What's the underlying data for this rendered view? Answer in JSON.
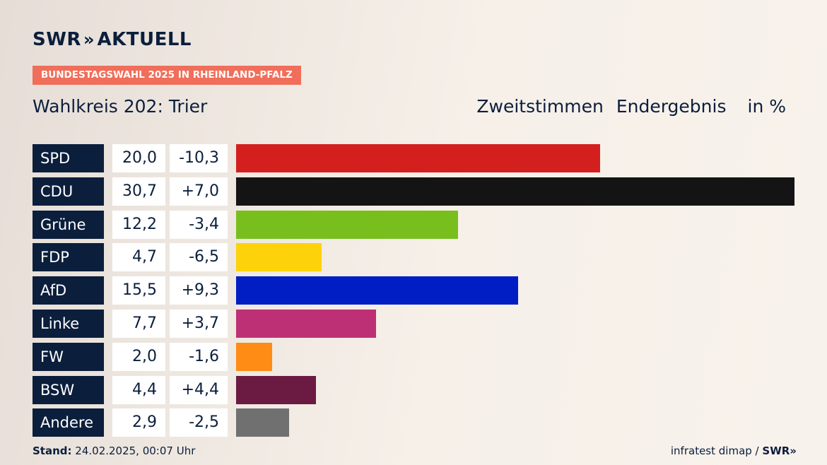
{
  "header": {
    "logo_brand": "SWR",
    "logo_chevrons": "»",
    "logo_product": "AKTUELL",
    "banner": "BUNDESTAGSWAHL 2025 IN RHEINLAND-PFALZ",
    "district": "Wahlkreis 202: Trier",
    "vote_type": "Zweitstimmen",
    "result_type": "Endergebnis",
    "unit": "in %"
  },
  "footer": {
    "stand_label": "Stand:",
    "stand_value": "24.02.2025, 00:07 Uhr",
    "source": "infratest dimap /",
    "source_brand": "SWR",
    "source_chevrons": "»"
  },
  "chart_data": {
    "type": "bar",
    "orientation": "horizontal",
    "title": "Wahlkreis 202: Trier",
    "subtitle": "Zweitstimmen Endergebnis",
    "unit": "in %",
    "xlim": [
      0,
      30.7
    ],
    "categories": [
      "SPD",
      "CDU",
      "Grüne",
      "FDP",
      "AfD",
      "Linke",
      "FW",
      "BSW",
      "Andere"
    ],
    "values": [
      20.0,
      30.7,
      12.2,
      4.7,
      15.5,
      7.7,
      2.0,
      4.4,
      2.9
    ],
    "value_labels": [
      "20,0",
      "30,7",
      "12,2",
      "4,7",
      "15,5",
      "7,7",
      "2,0",
      "4,4",
      "2,9"
    ],
    "diffs": [
      -10.3,
      7.0,
      -3.4,
      -6.5,
      9.3,
      3.7,
      -1.6,
      4.4,
      -2.5
    ],
    "diff_labels": [
      "-10,3",
      "+7,0",
      "-3,4",
      "-6,5",
      "+9,3",
      "+3,7",
      "-1,6",
      "+4,4",
      "-2,5"
    ],
    "colors": [
      "#d41f1f",
      "#141414",
      "#78bf1e",
      "#fdd20a",
      "#001ec3",
      "#be3075",
      "#ff8c14",
      "#6b1a42",
      "#707070"
    ]
  }
}
